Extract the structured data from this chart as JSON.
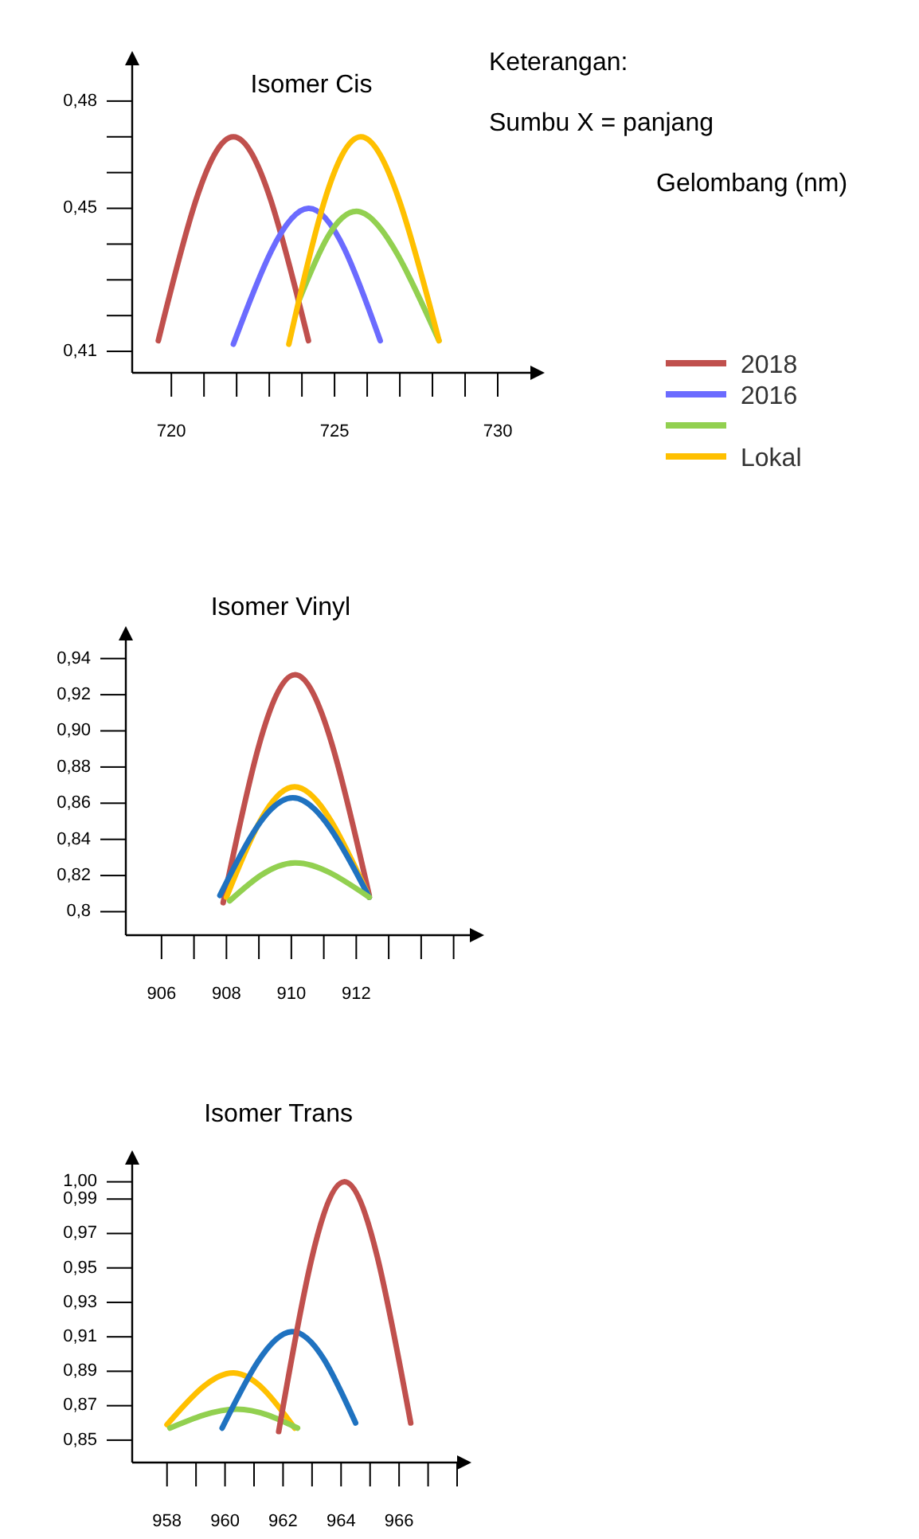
{
  "chart_data": [
    {
      "type": "line",
      "title": "Isomer Cis",
      "annotations": [
        "Keterangan:",
        "Sumbu X = panjang",
        "Gelombang (nm)"
      ],
      "legend": "right",
      "marker": "none",
      "line_style": "solid",
      "grid": false,
      "xlim": [
        718.8,
        731
      ],
      "ylim": [
        0.404,
        0.49
      ],
      "xticks": [
        720,
        {
          "value": 721,
          "label": null
        },
        {
          "value": 722,
          "label": null
        },
        {
          "value": 723,
          "label": null
        },
        {
          "value": 724,
          "label": null
        },
        725,
        {
          "value": 726,
          "label": null
        },
        {
          "value": 727,
          "label": null
        },
        {
          "value": 728,
          "label": null
        },
        {
          "value": 729,
          "label": null
        },
        730
      ],
      "yticks": [
        {
          "value": 0.41,
          "label": "0,41"
        },
        {
          "value": 0.42,
          "label": null
        },
        {
          "value": 0.43,
          "label": null
        },
        {
          "value": 0.44,
          "label": null
        },
        {
          "value": 0.45,
          "label": "0,45"
        },
        {
          "value": 0.46,
          "label": null
        },
        {
          "value": 0.47,
          "label": null
        },
        {
          "value": 0.48,
          "label": "0,48"
        }
      ],
      "series": [
        {
          "name": "2018",
          "color": "#c0504d",
          "x": [
            719.6,
            721.9,
            724.2
          ],
          "values": [
            0.413,
            0.47,
            0.413
          ]
        },
        {
          "name": "2016",
          "color": "#6b6bff",
          "x": [
            721.9,
            724.2,
            726.4
          ],
          "values": [
            0.412,
            0.45,
            0.413
          ]
        },
        {
          "color": "#92d050",
          "x": [
            723.9,
            725.8,
            728.2
          ],
          "values": [
            0.424,
            0.449,
            0.413
          ]
        },
        {
          "name": "Lokal",
          "color": "#ffc000",
          "x": [
            723.6,
            725.8,
            728.2
          ],
          "values": [
            0.412,
            0.47,
            0.413
          ]
        }
      ]
    },
    {
      "type": "line",
      "title": "Isomer Vinyl",
      "marker": "none",
      "line_style": "solid",
      "grid": false,
      "xlim": [
        904.9,
        915.5
      ],
      "ylim": [
        0.787,
        0.95
      ],
      "xticks": [
        906,
        {
          "value": 907,
          "label": null
        },
        908,
        {
          "value": 909,
          "label": null
        },
        910,
        {
          "value": 911,
          "label": null
        },
        912,
        {
          "value": 913,
          "label": null
        },
        {
          "value": 914,
          "label": null
        },
        {
          "value": 915,
          "label": null
        }
      ],
      "yticks": [
        {
          "value": 0.8,
          "label": "0,8"
        },
        {
          "value": 0.82,
          "label": "0,82"
        },
        {
          "value": 0.84,
          "label": "0,84"
        },
        {
          "value": 0.86,
          "label": "0,86"
        },
        {
          "value": 0.88,
          "label": "0,88"
        },
        {
          "value": 0.9,
          "label": "0,90"
        },
        {
          "value": 0.92,
          "label": "0,92"
        },
        {
          "value": 0.94,
          "label": "0,94"
        }
      ],
      "series": [
        {
          "color": "#c0504d",
          "x": [
            907.9,
            910.1,
            912.4
          ],
          "values": [
            0.805,
            0.931,
            0.809
          ]
        },
        {
          "color": "#ffc000",
          "x": [
            908,
            910.1,
            912.4
          ],
          "values": [
            0.808,
            0.869,
            0.808
          ]
        },
        {
          "color": "#1f72c0",
          "x": [
            907.8,
            910.05,
            912.4
          ],
          "values": [
            0.809,
            0.863,
            0.808
          ]
        },
        {
          "color": "#92d050",
          "x": [
            908.1,
            910.1,
            912.4
          ],
          "values": [
            0.806,
            0.827,
            0.808
          ]
        }
      ]
    },
    {
      "type": "line",
      "title": "Isomer Trans",
      "marker": "none",
      "line_style": "solid",
      "grid": false,
      "xlim": [
        956.8,
        968
      ],
      "ylim": [
        0.837,
        1.01
      ],
      "xticks": [
        958,
        {
          "value": 959,
          "label": null
        },
        960,
        {
          "value": 961,
          "label": null
        },
        962,
        {
          "value": 963,
          "label": null
        },
        964,
        {
          "value": 965,
          "label": null
        },
        966,
        {
          "value": 967,
          "label": null
        },
        {
          "value": 968,
          "label": null
        }
      ],
      "yticks": [
        {
          "value": 0.85,
          "label": "0,85"
        },
        {
          "value": 0.87,
          "label": "0,87"
        },
        {
          "value": 0.89,
          "label": "0,89"
        },
        {
          "value": 0.91,
          "label": "0,91"
        },
        {
          "value": 0.93,
          "label": "0,93"
        },
        {
          "value": 0.95,
          "label": "0,95"
        },
        {
          "value": 0.97,
          "label": "0,97"
        },
        {
          "value": 0.99,
          "label": "0,99"
        },
        {
          "value": 1.0,
          "label": "1,00"
        }
      ],
      "series": [
        {
          "color": "#ffc000",
          "x": [
            958,
            960.3,
            962.4
          ],
          "values": [
            0.859,
            0.889,
            0.857
          ]
        },
        {
          "color": "#92d050",
          "x": [
            958.1,
            960.4,
            962.5
          ],
          "values": [
            0.857,
            0.868,
            0.857
          ]
        },
        {
          "color": "#1f72c0",
          "x": [
            959.9,
            962.3,
            964.5
          ],
          "values": [
            0.857,
            0.913,
            0.86
          ]
        },
        {
          "color": "#c0504d",
          "x": [
            961.85,
            964.1,
            966.4
          ],
          "values": [
            0.855,
            1.0,
            0.86
          ]
        }
      ]
    }
  ]
}
